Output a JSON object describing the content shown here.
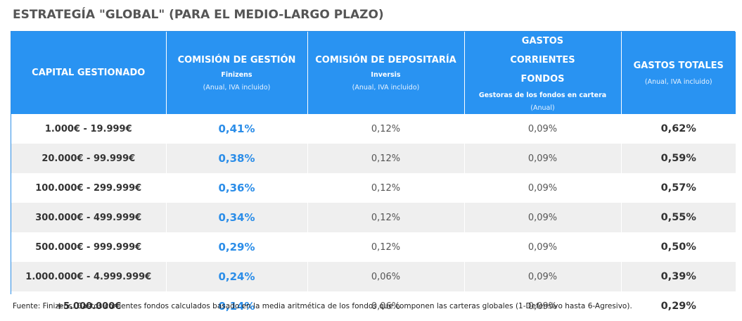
{
  "title": "ESTRATEGÍA \"GLOBAL\" (PARA EL MEDIO-LARGO PLAZO)",
  "headers": [
    {
      "main": "CAPITAL GESTIONADO",
      "sub": "",
      "note": ""
    },
    {
      "main": "COMISIÓN DE GESTIÓN",
      "sub": "Finizens",
      "note": "(Anual, IVA incluido)"
    },
    {
      "main": "COMISIÓN DE DEPOSITARÍA",
      "sub": "Inversis",
      "note": "(Anual, IVA incluido)"
    },
    {
      "main": "GASTOS CORRIENTES FONDOS",
      "sub": "Gestoras de los fondos en cartera",
      "note": "(Anual)"
    },
    {
      "main": "GASTOS TOTALES",
      "sub": "",
      "note": "(Anual, IVA incluido)"
    }
  ],
  "rows": [
    {
      "capital": "1.000€ - 19.999€",
      "gestion": "0,41%",
      "depositaria": "0,12%",
      "corrientes": "0,09%",
      "total": "0,62%"
    },
    {
      "capital": "20.000€ - 99.999€",
      "gestion": "0,38%",
      "depositaria": "0,12%",
      "corrientes": "0,09%",
      "total": "0,59%"
    },
    {
      "capital": "100.000€ - 299.999€",
      "gestion": "0,36%",
      "depositaria": "0,12%",
      "corrientes": "0,09%",
      "total": "0,57%"
    },
    {
      "capital": "300.000€ - 499.999€",
      "gestion": "0,34%",
      "depositaria": "0,12%",
      "corrientes": "0,09%",
      "total": "0,55%"
    },
    {
      "capital": "500.000€ - 999.999€",
      "gestion": "0,29%",
      "depositaria": "0,12%",
      "corrientes": "0,09%",
      "total": "0,50%"
    },
    {
      "capital": "1.000.000€ - 4.999.999€",
      "gestion": "0,24%",
      "depositaria": "0,06%",
      "corrientes": "0,09%",
      "total": "0,39%"
    },
    {
      "capital": "+5.000.000€",
      "gestion": "0,14%",
      "depositaria": "0,06%",
      "corrientes": "0,09%",
      "total": "0,29%"
    }
  ],
  "footnote": "Fuente: Finizens. Gastos corrientes fondos calculados basado en la media aritmética de los fondos que componen las carteras globales (1-Defensivo hasta 6-Agresivo).",
  "colors": {
    "header_bg": "#2993f2",
    "accent_blue": "#2b8de8",
    "row_alt": "#efefef"
  }
}
